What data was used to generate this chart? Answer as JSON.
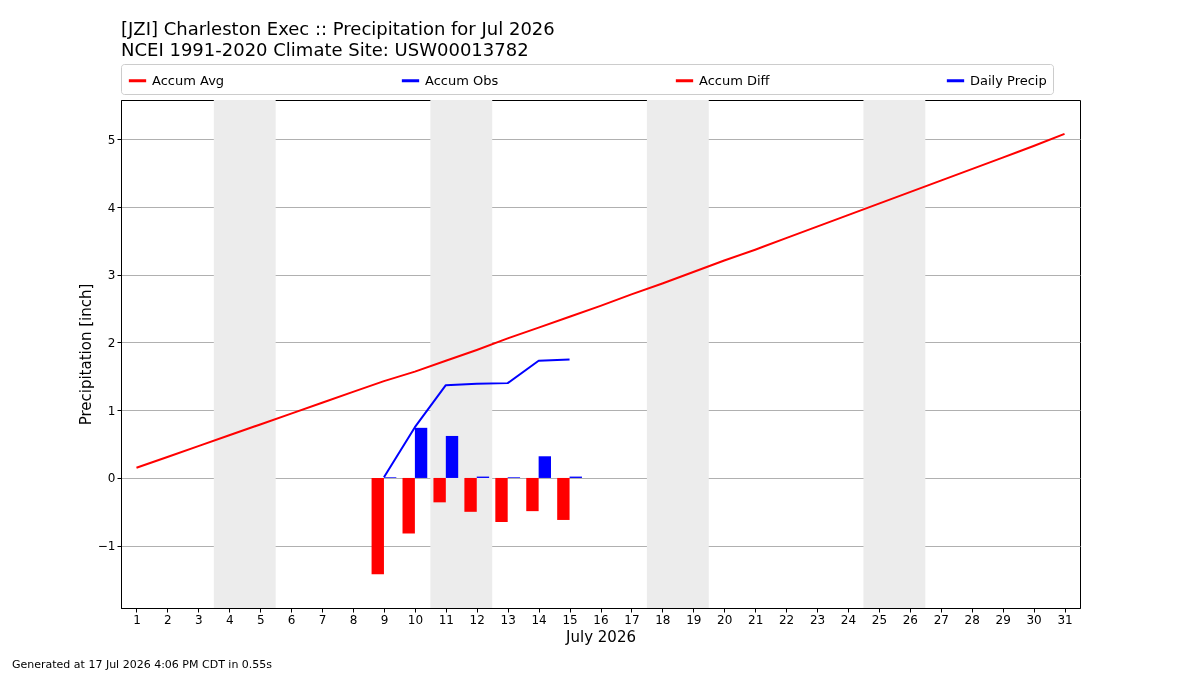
{
  "chart_data": {
    "type": "line",
    "title": "[JZI] Charleston Exec :: Precipitation for Jul 2026",
    "subtitle": "NCEI 1991-2020 Climate Site: USW00013782",
    "xlabel": "July 2026",
    "ylabel": "Precipitation [inch]",
    "xlim": [
      0.5,
      31.5
    ],
    "xticks": [
      1,
      2,
      3,
      4,
      5,
      6,
      7,
      8,
      9,
      10,
      11,
      12,
      13,
      14,
      15,
      16,
      17,
      18,
      19,
      20,
      21,
      22,
      23,
      24,
      25,
      26,
      27,
      28,
      29,
      30,
      31
    ],
    "ylim": [
      -1.92,
      5.58
    ],
    "yticks": [
      {
        "value": -1,
        "label": "−1"
      },
      0,
      1,
      2,
      3,
      4,
      5
    ],
    "grid": "y",
    "legend": "top",
    "series": [
      {
        "name": "Accum Avg",
        "color": "#ff0000",
        "x": [
          1,
          2,
          3,
          4,
          5,
          6,
          7,
          8,
          9,
          10,
          11,
          12,
          13,
          14,
          15,
          16,
          17,
          18,
          19,
          20,
          21,
          22,
          23,
          24,
          25,
          26,
          27,
          28,
          29,
          30,
          31
        ],
        "values": [
          0.15,
          0.31,
          0.47,
          0.63,
          0.79,
          0.95,
          1.11,
          1.27,
          1.43,
          1.57,
          1.73,
          1.89,
          2.06,
          2.22,
          2.38,
          2.54,
          2.71,
          2.87,
          3.04,
          3.21,
          3.37,
          3.54,
          3.71,
          3.88,
          4.05,
          4.22,
          4.39,
          4.56,
          4.73,
          4.9,
          5.08
        ]
      },
      {
        "name": "Accum Obs",
        "type": "line",
        "color": "#0000ff",
        "x": [
          9,
          10,
          11,
          12,
          13,
          14,
          15
        ],
        "values": [
          0.01,
          0.75,
          1.37,
          1.39,
          1.4,
          1.73,
          1.75
        ]
      },
      {
        "name": "Accum Diff",
        "type": "bar",
        "color": "#ff0000",
        "x": [
          9,
          10,
          11,
          12,
          13,
          14,
          15
        ],
        "values": [
          -1.42,
          -0.82,
          -0.36,
          -0.5,
          -0.65,
          -0.49,
          -0.62
        ]
      },
      {
        "name": "Daily Precip",
        "type": "bar",
        "color": "#0000ff",
        "x": [
          9,
          10,
          11,
          12,
          13,
          14,
          15
        ],
        "values": [
          0.01,
          0.74,
          0.62,
          0.02,
          0.01,
          0.32,
          0.02
        ]
      }
    ],
    "bands": [
      {
        "axis": "x",
        "from": 3.5,
        "to": 5.5,
        "color": "#ececec"
      },
      {
        "axis": "x",
        "from": 10.5,
        "to": 12.5,
        "color": "#ececec"
      },
      {
        "axis": "x",
        "from": 17.5,
        "to": 19.5,
        "color": "#ececec"
      },
      {
        "axis": "x",
        "from": 24.5,
        "to": 26.5,
        "color": "#ececec"
      }
    ],
    "annotations": [
      "Generated at 17 Jul 2026 4:06 PM CDT in 0.55s"
    ]
  }
}
